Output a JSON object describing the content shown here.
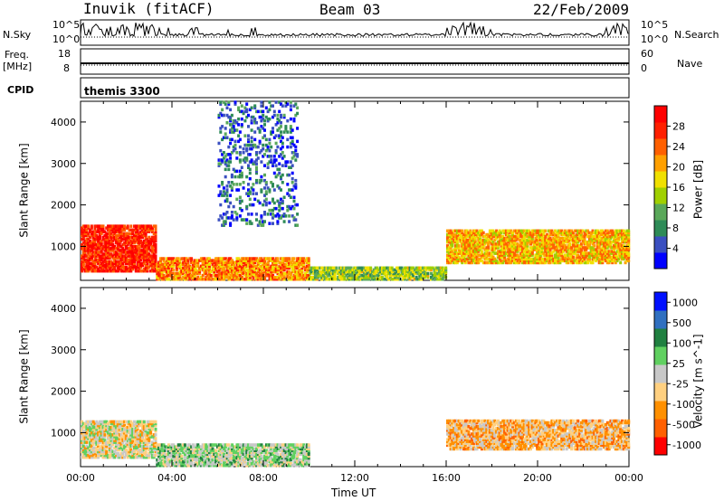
{
  "header": {
    "station": "Inuvik (fitACF)",
    "beam": "Beam 03",
    "date": "22/Feb/2009"
  },
  "panels": {
    "nsky": {
      "left_label": "N.Sky",
      "right_label": "N.Search",
      "left_ticks": [
        "10^5",
        "10^0"
      ],
      "right_ticks": [
        "10^5",
        "10^0"
      ]
    },
    "freq": {
      "left_label_top": "Freq.",
      "left_label_unit": "[MHz]",
      "right_label": "Nave",
      "left_ticks": [
        "18",
        "8"
      ],
      "right_ticks": [
        "60",
        "0"
      ]
    },
    "cpid": {
      "label": "CPID",
      "value": "themis 3300"
    }
  },
  "colors": {
    "power": [
      "#0000ff",
      "#3a4fc0",
      "#2e8b57",
      "#5aa85a",
      "#a0d000",
      "#f0e000",
      "#ffa000",
      "#ff6000",
      "#ff2000",
      "#ff0000"
    ],
    "velocity": [
      "#ff0000",
      "#ff6000",
      "#ff9000",
      "#ffd080",
      "#c8c8c8",
      "#60d060",
      "#208040",
      "#3070c0",
      "#0010ff"
    ]
  },
  "chart_data": [
    {
      "type": "heatmap",
      "title": "",
      "xlabel": "",
      "ylabel": "Slant Range [km]",
      "xlim": [
        0,
        24
      ],
      "ylim": [
        180,
        4500
      ],
      "x_ticks": [],
      "y_ticks": [
        "1000",
        "2000",
        "3000",
        "4000"
      ],
      "y_tick_values": [
        1000,
        2000,
        3000,
        4000
      ],
      "colorbar": {
        "label": "Power [dB]",
        "ticks": [
          "4",
          "8",
          "12",
          "16",
          "20",
          "24",
          "28"
        ],
        "range": [
          0,
          32
        ]
      },
      "regions": [
        {
          "t0": 0.0,
          "t1": 3.3,
          "r0": 400,
          "r1": 1500,
          "value": 28
        },
        {
          "t0": 3.3,
          "t1": 10.0,
          "r0": 200,
          "r1": 700,
          "value": 22
        },
        {
          "t0": 10.0,
          "t1": 16.0,
          "r0": 200,
          "r1": 500,
          "value": 14
        },
        {
          "t0": 16.0,
          "t1": 24.0,
          "r0": 600,
          "r1": 1400,
          "value": 20
        },
        {
          "t0": 6.0,
          "t1": 9.5,
          "r0": 1500,
          "r1": 4500,
          "value": 6
        }
      ]
    },
    {
      "type": "heatmap",
      "title": "",
      "xlabel": "Time UT",
      "ylabel": "Slant Range [km]",
      "xlim": [
        0,
        24
      ],
      "ylim": [
        180,
        4500
      ],
      "x_ticks": [
        "00:00",
        "04:00",
        "08:00",
        "12:00",
        "16:00",
        "20:00",
        "00:00"
      ],
      "x_tick_values": [
        0,
        4,
        8,
        12,
        16,
        20,
        24
      ],
      "y_ticks": [
        "1000",
        "2000",
        "3000",
        "4000"
      ],
      "y_tick_values": [
        1000,
        2000,
        3000,
        4000
      ],
      "colorbar": {
        "label": "Velocity [m s^-1]",
        "ticks": [
          "1000",
          "500",
          "100",
          "25",
          "-25",
          "-100",
          "-500",
          "-1000"
        ],
        "range": [
          -1000,
          1000
        ]
      },
      "regions": [
        {
          "t0": 0.0,
          "t1": 3.3,
          "r0": 400,
          "r1": 1300,
          "value": -100
        },
        {
          "t0": 3.3,
          "t1": 10.0,
          "r0": 200,
          "r1": 700,
          "value": 100
        },
        {
          "t0": 16.0,
          "t1": 24.0,
          "r0": 600,
          "r1": 1300,
          "value": -300
        }
      ]
    }
  ]
}
